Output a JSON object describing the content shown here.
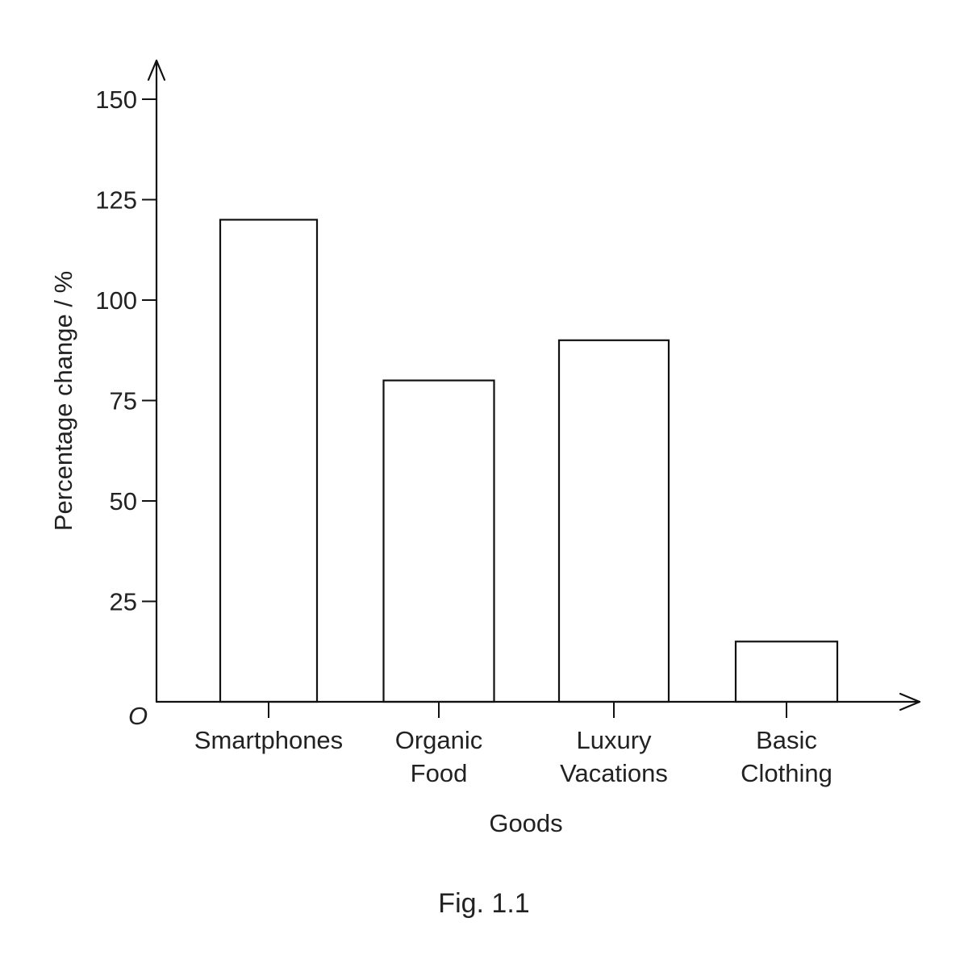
{
  "chart_data": {
    "type": "bar",
    "categories": [
      [
        "Smartphones"
      ],
      [
        "Organic",
        "Food"
      ],
      [
        "Luxury",
        "Vacations"
      ],
      [
        "Basic",
        "Clothing"
      ]
    ],
    "values": [
      120,
      80,
      90,
      15
    ],
    "xlabel": "Goods",
    "ylabel": "Percentage change / %",
    "ylim": [
      0,
      150
    ],
    "yticks": [
      25,
      50,
      75,
      100,
      125,
      150
    ],
    "origin_label": "O",
    "caption": "Fig. 1.1",
    "grid": false,
    "legend": "none",
    "colors": {
      "bar_fill": "#ffffff",
      "bar_stroke": "#111111",
      "axis": "#111111",
      "text": "#222222"
    }
  }
}
